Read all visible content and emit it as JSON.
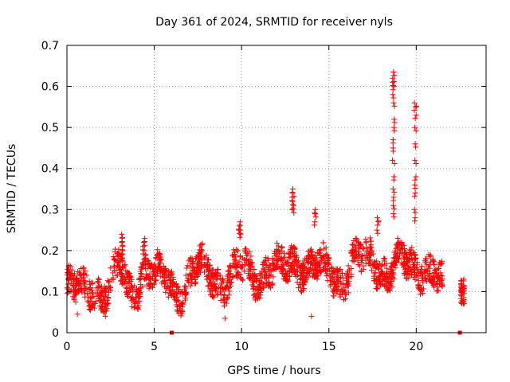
{
  "chart_data": {
    "type": "scatter",
    "title": "Day 361 of 2024, SRMTID for receiver nyls",
    "xlabel": "GPS time / hours",
    "ylabel": "SRMTID / TECUs",
    "xlim": [
      0,
      24
    ],
    "ylim": [
      0,
      0.7
    ],
    "xticks": [
      0,
      5,
      10,
      15,
      20
    ],
    "xtick_labels": [
      "0",
      "5",
      "10",
      "15",
      "20"
    ],
    "yticks": [
      0,
      0.1,
      0.2,
      0.3,
      0.4,
      0.5,
      0.6,
      0.7
    ],
    "ytick_labels": [
      "0",
      "0.1",
      "0.2",
      "0.3",
      "0.4",
      "0.5",
      "0.6",
      "0.7"
    ],
    "grid": true,
    "marker": "+",
    "series_color": "#ff0000",
    "base_trend": [
      {
        "x": 0.0,
        "y": 0.11
      },
      {
        "x": 0.5,
        "y": 0.1
      },
      {
        "x": 1.0,
        "y": 0.1
      },
      {
        "x": 1.5,
        "y": 0.12
      },
      {
        "x": 2.0,
        "y": 0.1
      },
      {
        "x": 2.5,
        "y": 0.11
      },
      {
        "x": 3.0,
        "y": 0.16
      },
      {
        "x": 3.5,
        "y": 0.1
      },
      {
        "x": 4.0,
        "y": 0.12
      },
      {
        "x": 4.5,
        "y": 0.16
      },
      {
        "x": 5.0,
        "y": 0.13
      },
      {
        "x": 5.5,
        "y": 0.13
      },
      {
        "x": 6.0,
        "y": 0.12
      },
      {
        "x": 6.5,
        "y": 0.11
      },
      {
        "x": 7.0,
        "y": 0.13
      },
      {
        "x": 7.5,
        "y": 0.15
      },
      {
        "x": 8.0,
        "y": 0.15
      },
      {
        "x": 8.5,
        "y": 0.14
      },
      {
        "x": 9.0,
        "y": 0.12
      },
      {
        "x": 9.5,
        "y": 0.14
      },
      {
        "x": 10.0,
        "y": 0.15
      },
      {
        "x": 10.5,
        "y": 0.15
      },
      {
        "x": 11.0,
        "y": 0.14
      },
      {
        "x": 11.5,
        "y": 0.16
      },
      {
        "x": 12.0,
        "y": 0.15
      },
      {
        "x": 12.5,
        "y": 0.15
      },
      {
        "x": 13.0,
        "y": 0.18
      },
      {
        "x": 13.5,
        "y": 0.17
      },
      {
        "x": 14.0,
        "y": 0.16
      },
      {
        "x": 14.5,
        "y": 0.15
      },
      {
        "x": 15.0,
        "y": 0.15
      },
      {
        "x": 15.5,
        "y": 0.13
      },
      {
        "x": 16.0,
        "y": 0.14
      },
      {
        "x": 16.5,
        "y": 0.18
      },
      {
        "x": 17.0,
        "y": 0.17
      },
      {
        "x": 17.5,
        "y": 0.18
      },
      {
        "x": 18.0,
        "y": 0.16
      },
      {
        "x": 18.5,
        "y": 0.15
      },
      {
        "x": 19.0,
        "y": 0.17
      },
      {
        "x": 19.5,
        "y": 0.16
      },
      {
        "x": 20.0,
        "y": 0.16
      },
      {
        "x": 20.5,
        "y": 0.17
      },
      {
        "x": 21.0,
        "y": 0.15
      },
      {
        "x": 21.5,
        "y": 0.11
      }
    ],
    "point_spread": 0.035,
    "points_per_hour": 90,
    "gaps": [
      [
        21.55,
        22.5
      ]
    ],
    "late_segment": {
      "x_range": [
        22.55,
        22.75
      ],
      "y_center": 0.1,
      "y_spread": 0.02
    },
    "spikes": [
      {
        "x": 3.15,
        "values": [
          0.19,
          0.21,
          0.23,
          0.24,
          0.22,
          0.2
        ]
      },
      {
        "x": 4.4,
        "values": [
          0.2,
          0.22,
          0.23,
          0.21
        ]
      },
      {
        "x": 9.9,
        "values": [
          0.24,
          0.25,
          0.26,
          0.27,
          0.25
        ]
      },
      {
        "x": 12.95,
        "values": [
          0.3,
          0.32,
          0.34,
          0.35,
          0.33,
          0.31
        ]
      },
      {
        "x": 14.2,
        "values": [
          0.27,
          0.29,
          0.3
        ]
      },
      {
        "x": 18.7,
        "values": [
          0.29,
          0.31,
          0.33,
          0.35,
          0.38,
          0.42,
          0.45,
          0.47,
          0.5,
          0.52,
          0.56,
          0.58,
          0.6,
          0.61,
          0.62,
          0.635
        ]
      },
      {
        "x": 19.95,
        "values": [
          0.28,
          0.3,
          0.34,
          0.36,
          0.38,
          0.42,
          0.46,
          0.5,
          0.53,
          0.55,
          0.56
        ]
      },
      {
        "x": 17.8,
        "values": [
          0.25,
          0.27,
          0.28
        ]
      }
    ],
    "outliers": [
      {
        "x": 14.0,
        "y": 0.04
      },
      {
        "x": 9.05,
        "y": 0.035
      },
      {
        "x": 0.6,
        "y": 0.045
      },
      {
        "x": 2.2,
        "y": 0.04
      }
    ],
    "zero_markers": [
      {
        "x": 6.0,
        "y": 0
      },
      {
        "x": 22.5,
        "y": 0
      }
    ]
  }
}
